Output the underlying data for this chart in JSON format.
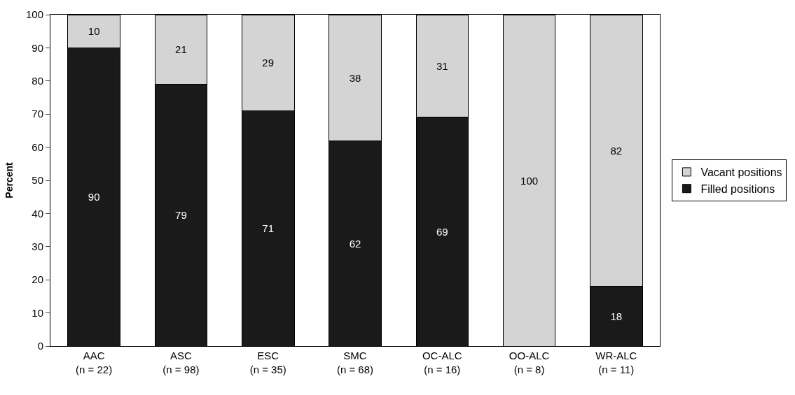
{
  "chart_data": {
    "type": "bar",
    "stacked": true,
    "ylabel": "Percent",
    "categories": [
      "AAC\n(n = 22)",
      "ASC\n(n = 98)",
      "ESC\n(n = 35)",
      "SMC\n(n = 68)",
      "OC-ALC\n(n = 16)",
      "OO-ALC\n(n = 8)",
      "WR-ALC\n(n = 11)"
    ],
    "series": [
      {
        "name": "Filled positions",
        "color": "#1a1a1a",
        "values": [
          90,
          79,
          71,
          62,
          69,
          0,
          18
        ],
        "value_labels": [
          "90",
          "79",
          "71",
          "62",
          "69",
          null,
          "18"
        ]
      },
      {
        "name": "Vacant positions",
        "color": "#d4d4d4",
        "values": [
          10,
          21,
          29,
          38,
          31,
          100,
          82
        ],
        "value_labels": [
          "10",
          "21",
          "29",
          "38",
          "31",
          "100",
          "82"
        ]
      }
    ],
    "ylim": [
      0,
      100
    ],
    "yticks": [
      0,
      10,
      20,
      30,
      40,
      50,
      60,
      70,
      80,
      90,
      100
    ],
    "legend": "right"
  }
}
